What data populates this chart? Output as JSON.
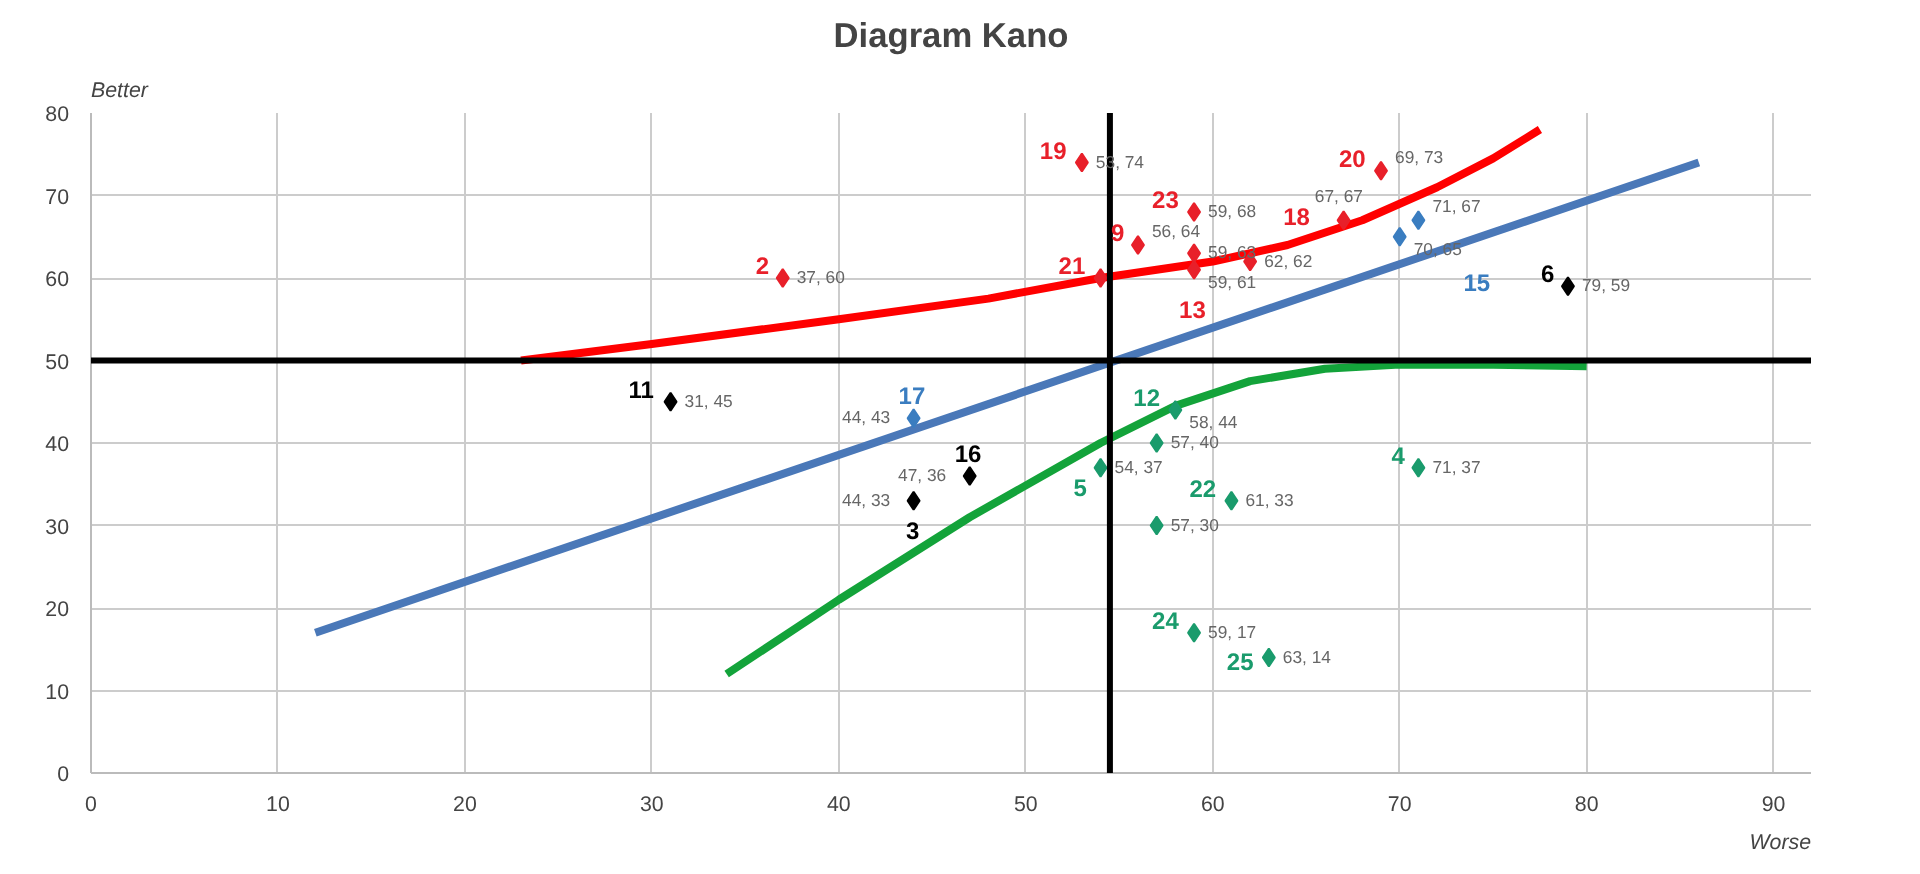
{
  "chart_data": {
    "type": "scatter",
    "title": "Diagram Kano",
    "xlabel": "Worse",
    "ylabel": "Better",
    "xlim": [
      0,
      92
    ],
    "ylim": [
      0,
      80
    ],
    "xticks": [
      0,
      10,
      20,
      30,
      40,
      50,
      60,
      70,
      80,
      90
    ],
    "yticks": [
      0,
      10,
      20,
      30,
      40,
      50,
      60,
      70,
      80
    ],
    "grid": true,
    "marker": "diamond",
    "series": [
      {
        "color": "#e8202a",
        "x": [
          53,
          69,
          59,
          56,
          37,
          54,
          59,
          62,
          67,
          59
        ],
        "values": [
          74,
          73,
          68,
          64,
          60,
          60,
          61,
          62,
          67,
          63
        ],
        "value_labels": [
          "53, 74",
          "69, 73",
          "59, 68",
          "56, 64",
          "37, 60",
          null,
          "59, 61",
          "62, 62",
          "67, 67",
          "59, 63"
        ]
      },
      {
        "color": "#3a7dc0",
        "x": [
          71,
          70,
          44
        ],
        "values": [
          67,
          65,
          43
        ],
        "value_labels": [
          "71, 67",
          "70, 65",
          "44, 43"
        ]
      },
      {
        "color": "#000000",
        "x": [
          79,
          31,
          47,
          44
        ],
        "values": [
          59,
          45,
          36,
          33
        ],
        "value_labels": [
          "79, 59",
          "31, 45",
          "47, 36",
          "44, 33"
        ]
      },
      {
        "color": "#1a9b6c",
        "x": [
          58,
          57,
          54,
          61,
          57,
          59,
          63,
          71
        ],
        "values": [
          44,
          40,
          37,
          33,
          30,
          17,
          14,
          37
        ],
        "value_labels": [
          "58, 44",
          "57, 40",
          "54, 37",
          "61, 33",
          "57, 30",
          "59, 17",
          "63, 14",
          "71, 37"
        ]
      },
      {
        "type": "line",
        "marker": "none",
        "color": "#ff0000",
        "x": [
          23,
          30,
          40,
          48,
          54,
          60,
          64,
          68,
          72,
          75,
          77.5
        ],
        "values": [
          50,
          52,
          55,
          57.5,
          60,
          62,
          64,
          67,
          71,
          74.5,
          78
        ]
      },
      {
        "type": "line",
        "marker": "none",
        "color": "#4a78b8",
        "x": [
          12,
          86
        ],
        "values": [
          17,
          74
        ]
      },
      {
        "type": "line",
        "marker": "none",
        "color": "#13a33a",
        "x": [
          34,
          40,
          47,
          54,
          58,
          62,
          66,
          70,
          75,
          80
        ],
        "values": [
          12,
          21,
          31,
          40,
          44.5,
          47.5,
          49,
          49.5,
          49.5,
          49.3
        ]
      }
    ],
    "ref_lines": [
      {
        "axis": "y",
        "value": 50,
        "color": "#000000"
      },
      {
        "axis": "x",
        "value": 54.5,
        "color": "#000000"
      }
    ],
    "annotations": [
      {
        "text": "19",
        "x": 53,
        "y": 74
      },
      {
        "text": "20",
        "x": 69,
        "y": 73
      },
      {
        "text": "23",
        "x": 59,
        "y": 68
      },
      {
        "text": "9",
        "x": 56,
        "y": 64
      },
      {
        "text": "2",
        "x": 37,
        "y": 60
      },
      {
        "text": "21",
        "x": 54,
        "y": 60
      },
      {
        "text": "13",
        "x": 59,
        "y": 61
      },
      {
        "text": "18",
        "x": 62,
        "y": 62
      },
      {
        "text": "15",
        "x": 71,
        "y": 67
      },
      {
        "text": "17",
        "x": 44,
        "y": 43
      },
      {
        "text": "6",
        "x": 79,
        "y": 59
      },
      {
        "text": "11",
        "x": 31,
        "y": 45
      },
      {
        "text": "16",
        "x": 47,
        "y": 36
      },
      {
        "text": "3",
        "x": 44,
        "y": 33
      },
      {
        "text": "12",
        "x": 58,
        "y": 44
      },
      {
        "text": "5",
        "x": 54,
        "y": 37
      },
      {
        "text": "22",
        "x": 61,
        "y": 33
      },
      {
        "text": "24",
        "x": 59,
        "y": 17
      },
      {
        "text": "25",
        "x": 63,
        "y": 14
      },
      {
        "text": "4",
        "x": 71,
        "y": 37
      }
    ]
  }
}
